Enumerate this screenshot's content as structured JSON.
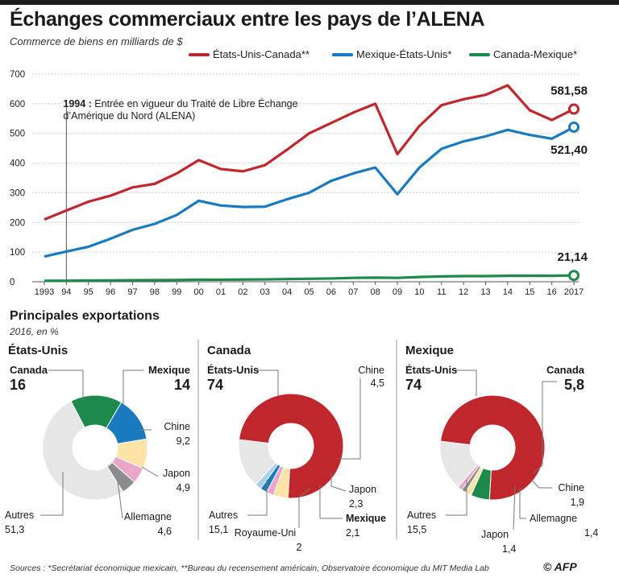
{
  "header": {
    "title": "Échanges commerciaux entre les pays de l’ALENA",
    "subtitle": "Commerce de biens en milliards de $"
  },
  "chart_data": [
    {
      "type": "line",
      "x_ticks": [
        "1993",
        "94",
        "95",
        "96",
        "97",
        "98",
        "99",
        "00",
        "01",
        "02",
        "03",
        "04",
        "05",
        "06",
        "07",
        "08",
        "09",
        "10",
        "11",
        "12",
        "13",
        "14",
        "15",
        "16",
        "2017"
      ],
      "x": [
        1993,
        1994,
        1995,
        1996,
        1997,
        1998,
        1999,
        2000,
        2001,
        2002,
        2003,
        2004,
        2005,
        2006,
        2007,
        2008,
        2009,
        2010,
        2011,
        2012,
        2013,
        2014,
        2015,
        2016,
        2017
      ],
      "ylim": [
        0,
        700
      ],
      "y_ticks": [
        0,
        100,
        200,
        300,
        400,
        500,
        600,
        700
      ],
      "grid": true,
      "legend_position": "top",
      "series": [
        {
          "name": "États-Unis-Canada**",
          "color": "#c0272d",
          "values": [
            210,
            240,
            270,
            290,
            318,
            330,
            365,
            410,
            380,
            372,
            393,
            445,
            500,
            535,
            570,
            600,
            430,
            525,
            595,
            615,
            630,
            662,
            578,
            545,
            582
          ],
          "end_label": "581,58"
        },
        {
          "name": "Mexique-États-Unis*",
          "color": "#1a7abf",
          "values": [
            85,
            102,
            118,
            145,
            175,
            195,
            225,
            273,
            257,
            252,
            253,
            278,
            300,
            340,
            365,
            385,
            295,
            385,
            448,
            473,
            490,
            512,
            495,
            482,
            521
          ],
          "end_label": "521,40"
        },
        {
          "name": "Canada-Mexique*",
          "color": "#1d8a4c",
          "values": [
            3,
            3.5,
            4,
            4.5,
            5,
            5.5,
            6,
            7,
            7,
            7.5,
            8,
            9,
            10,
            11,
            13,
            14,
            13,
            16,
            18,
            19,
            19,
            20,
            20,
            20,
            21.14
          ],
          "end_label": "21,14"
        }
      ],
      "annotation": {
        "year": 1994,
        "label_bold": "1994 :",
        "label_line1": " Entrée en vigueur du Traité de Libre Échange",
        "label_line2": "d’Amérique du Nord (ALENA)"
      }
    },
    {
      "type": "pie",
      "title": "États-Unis",
      "slices": [
        {
          "label": "Canada",
          "value": "16",
          "color": "#1d8a4c"
        },
        {
          "label": "Mexique",
          "value": "14",
          "color": "#1a7abf"
        },
        {
          "label": "Chine",
          "value": "9,2",
          "color": "#fde3a6"
        },
        {
          "label": "Japon",
          "value": "4,9",
          "color": "#eaa6c8"
        },
        {
          "label": "Allemagne",
          "value": "4,6",
          "color": "#8c8c8c"
        },
        {
          "label": "Autres",
          "value": "51,3",
          "color": "#e6e6e6"
        }
      ]
    },
    {
      "type": "pie",
      "title": "Canada",
      "slices": [
        {
          "label": "États-Unis",
          "value": "74",
          "color": "#c0272d"
        },
        {
          "label": "Chine",
          "value": "4,5",
          "color": "#fde3a6"
        },
        {
          "label": "Japon",
          "value": "2,3",
          "color": "#eaa6c8"
        },
        {
          "label": "Mexique",
          "value": "2,1",
          "color": "#1a7abf"
        },
        {
          "label": "Royaume-Uni",
          "value": "2",
          "color": "#a9cfee"
        },
        {
          "label": "Autres",
          "value": "15,1",
          "color": "#e6e6e6"
        }
      ]
    },
    {
      "type": "pie",
      "title": "Mexique",
      "slices": [
        {
          "label": "États-Unis",
          "value": "74",
          "color": "#c0272d"
        },
        {
          "label": "Canada",
          "value": "5,8",
          "color": "#1d8a4c"
        },
        {
          "label": "Chine",
          "value": "1,9",
          "color": "#fde3a6"
        },
        {
          "label": "Allemagne",
          "value": "1,4",
          "color": "#8c8c8c"
        },
        {
          "label": "Japon",
          "value": "1,4",
          "color": "#eaa6c8"
        },
        {
          "label": "Autres",
          "value": "15,5",
          "color": "#e6e6e6"
        }
      ]
    }
  ],
  "section": {
    "title": "Principales exportations",
    "subtitle": "2016, en %"
  },
  "footer": {
    "sources": "Sources : *Secrétariat économique mexicain, **Bureau du recensement américain, Observatoire économique du MIT Media Lab",
    "credit": "© AFP"
  }
}
